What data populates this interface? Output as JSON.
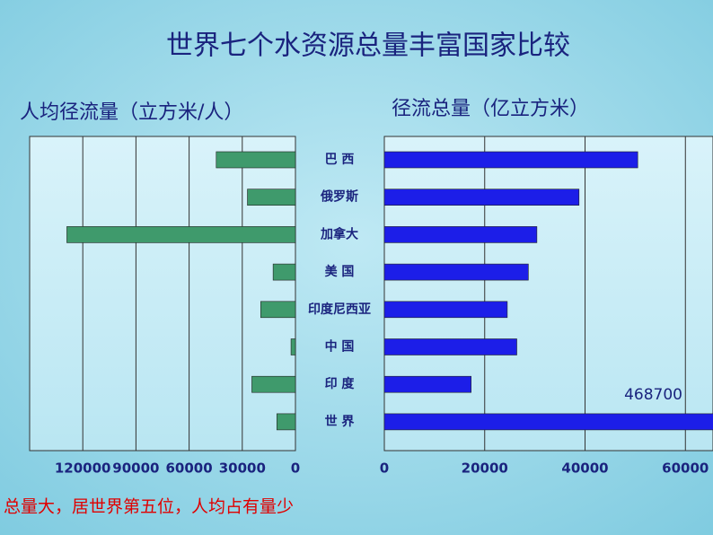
{
  "title": "世界七个水资源总量丰富国家比较",
  "note": "总量大，居世界第五位，人均占有量少",
  "chart_data": [
    {
      "type": "bar",
      "orientation": "horizontal",
      "title": "人均径流量（立方米/人）",
      "categories": [
        "巴 西",
        "俄罗斯",
        "加拿大",
        "美 国",
        "印度尼西亚",
        "中 国",
        "印 度",
        "世 界"
      ],
      "values": [
        44700,
        27100,
        129000,
        12600,
        19600,
        2500,
        24600,
        10500
      ],
      "color": "#3f9a6c",
      "xlim": [
        0,
        150000
      ],
      "xreverse": true,
      "xticks": [
        0,
        30000,
        60000,
        90000,
        120000
      ],
      "grid": true
    },
    {
      "type": "bar",
      "orientation": "horizontal",
      "title": "径流总量（亿立方米）",
      "values": [
        50500,
        38800,
        30400,
        28700,
        24500,
        26400,
        17300,
        468700
      ],
      "value_labels": [
        null,
        null,
        null,
        null,
        null,
        null,
        null,
        "468700"
      ],
      "color": "#1c1ee8",
      "xlim": [
        0,
        65500
      ],
      "xreverse": false,
      "xticks": [
        0,
        20000,
        40000,
        60000
      ],
      "grid": true
    }
  ]
}
